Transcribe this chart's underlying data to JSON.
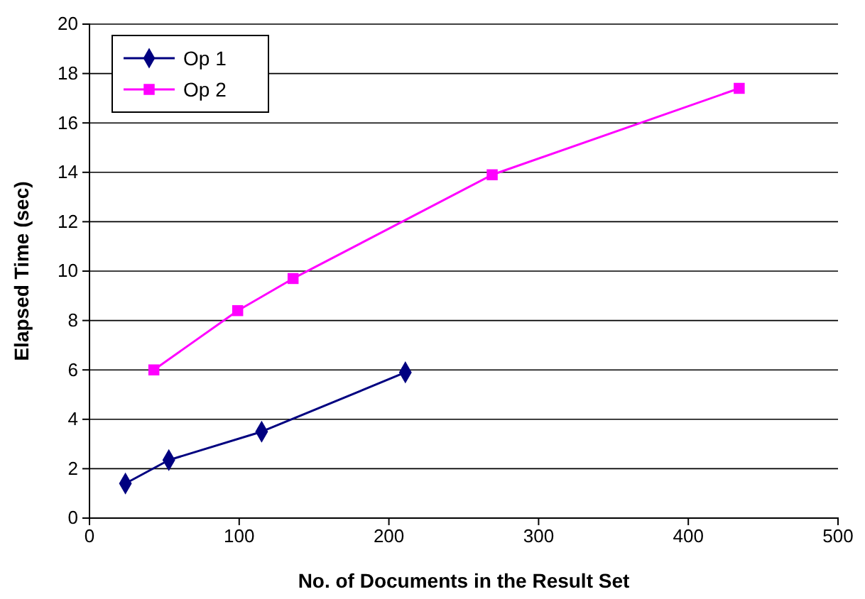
{
  "chart_data": {
    "type": "line",
    "xlabel": "No. of Documents in the Result Set",
    "ylabel": "Elapsed Time (sec)",
    "xlim": [
      0,
      500
    ],
    "xticks": [
      0,
      100,
      200,
      300,
      400,
      500
    ],
    "ylim": [
      0,
      20
    ],
    "yticks": [
      0,
      2,
      4,
      6,
      8,
      10,
      12,
      14,
      16,
      18,
      20
    ],
    "grid": "y",
    "legend": "top left",
    "series": [
      {
        "name": "Op 1",
        "color": "#000080",
        "marker": "diamond",
        "x": [
          24,
          53,
          115,
          211
        ],
        "values": [
          1.4,
          2.35,
          3.5,
          5.9
        ]
      },
      {
        "name": "Op 2",
        "color": "#ff00ff",
        "marker": "square",
        "x": [
          43,
          99,
          136,
          269,
          434
        ],
        "values": [
          6.0,
          8.4,
          9.7,
          13.9,
          17.4
        ]
      }
    ]
  }
}
